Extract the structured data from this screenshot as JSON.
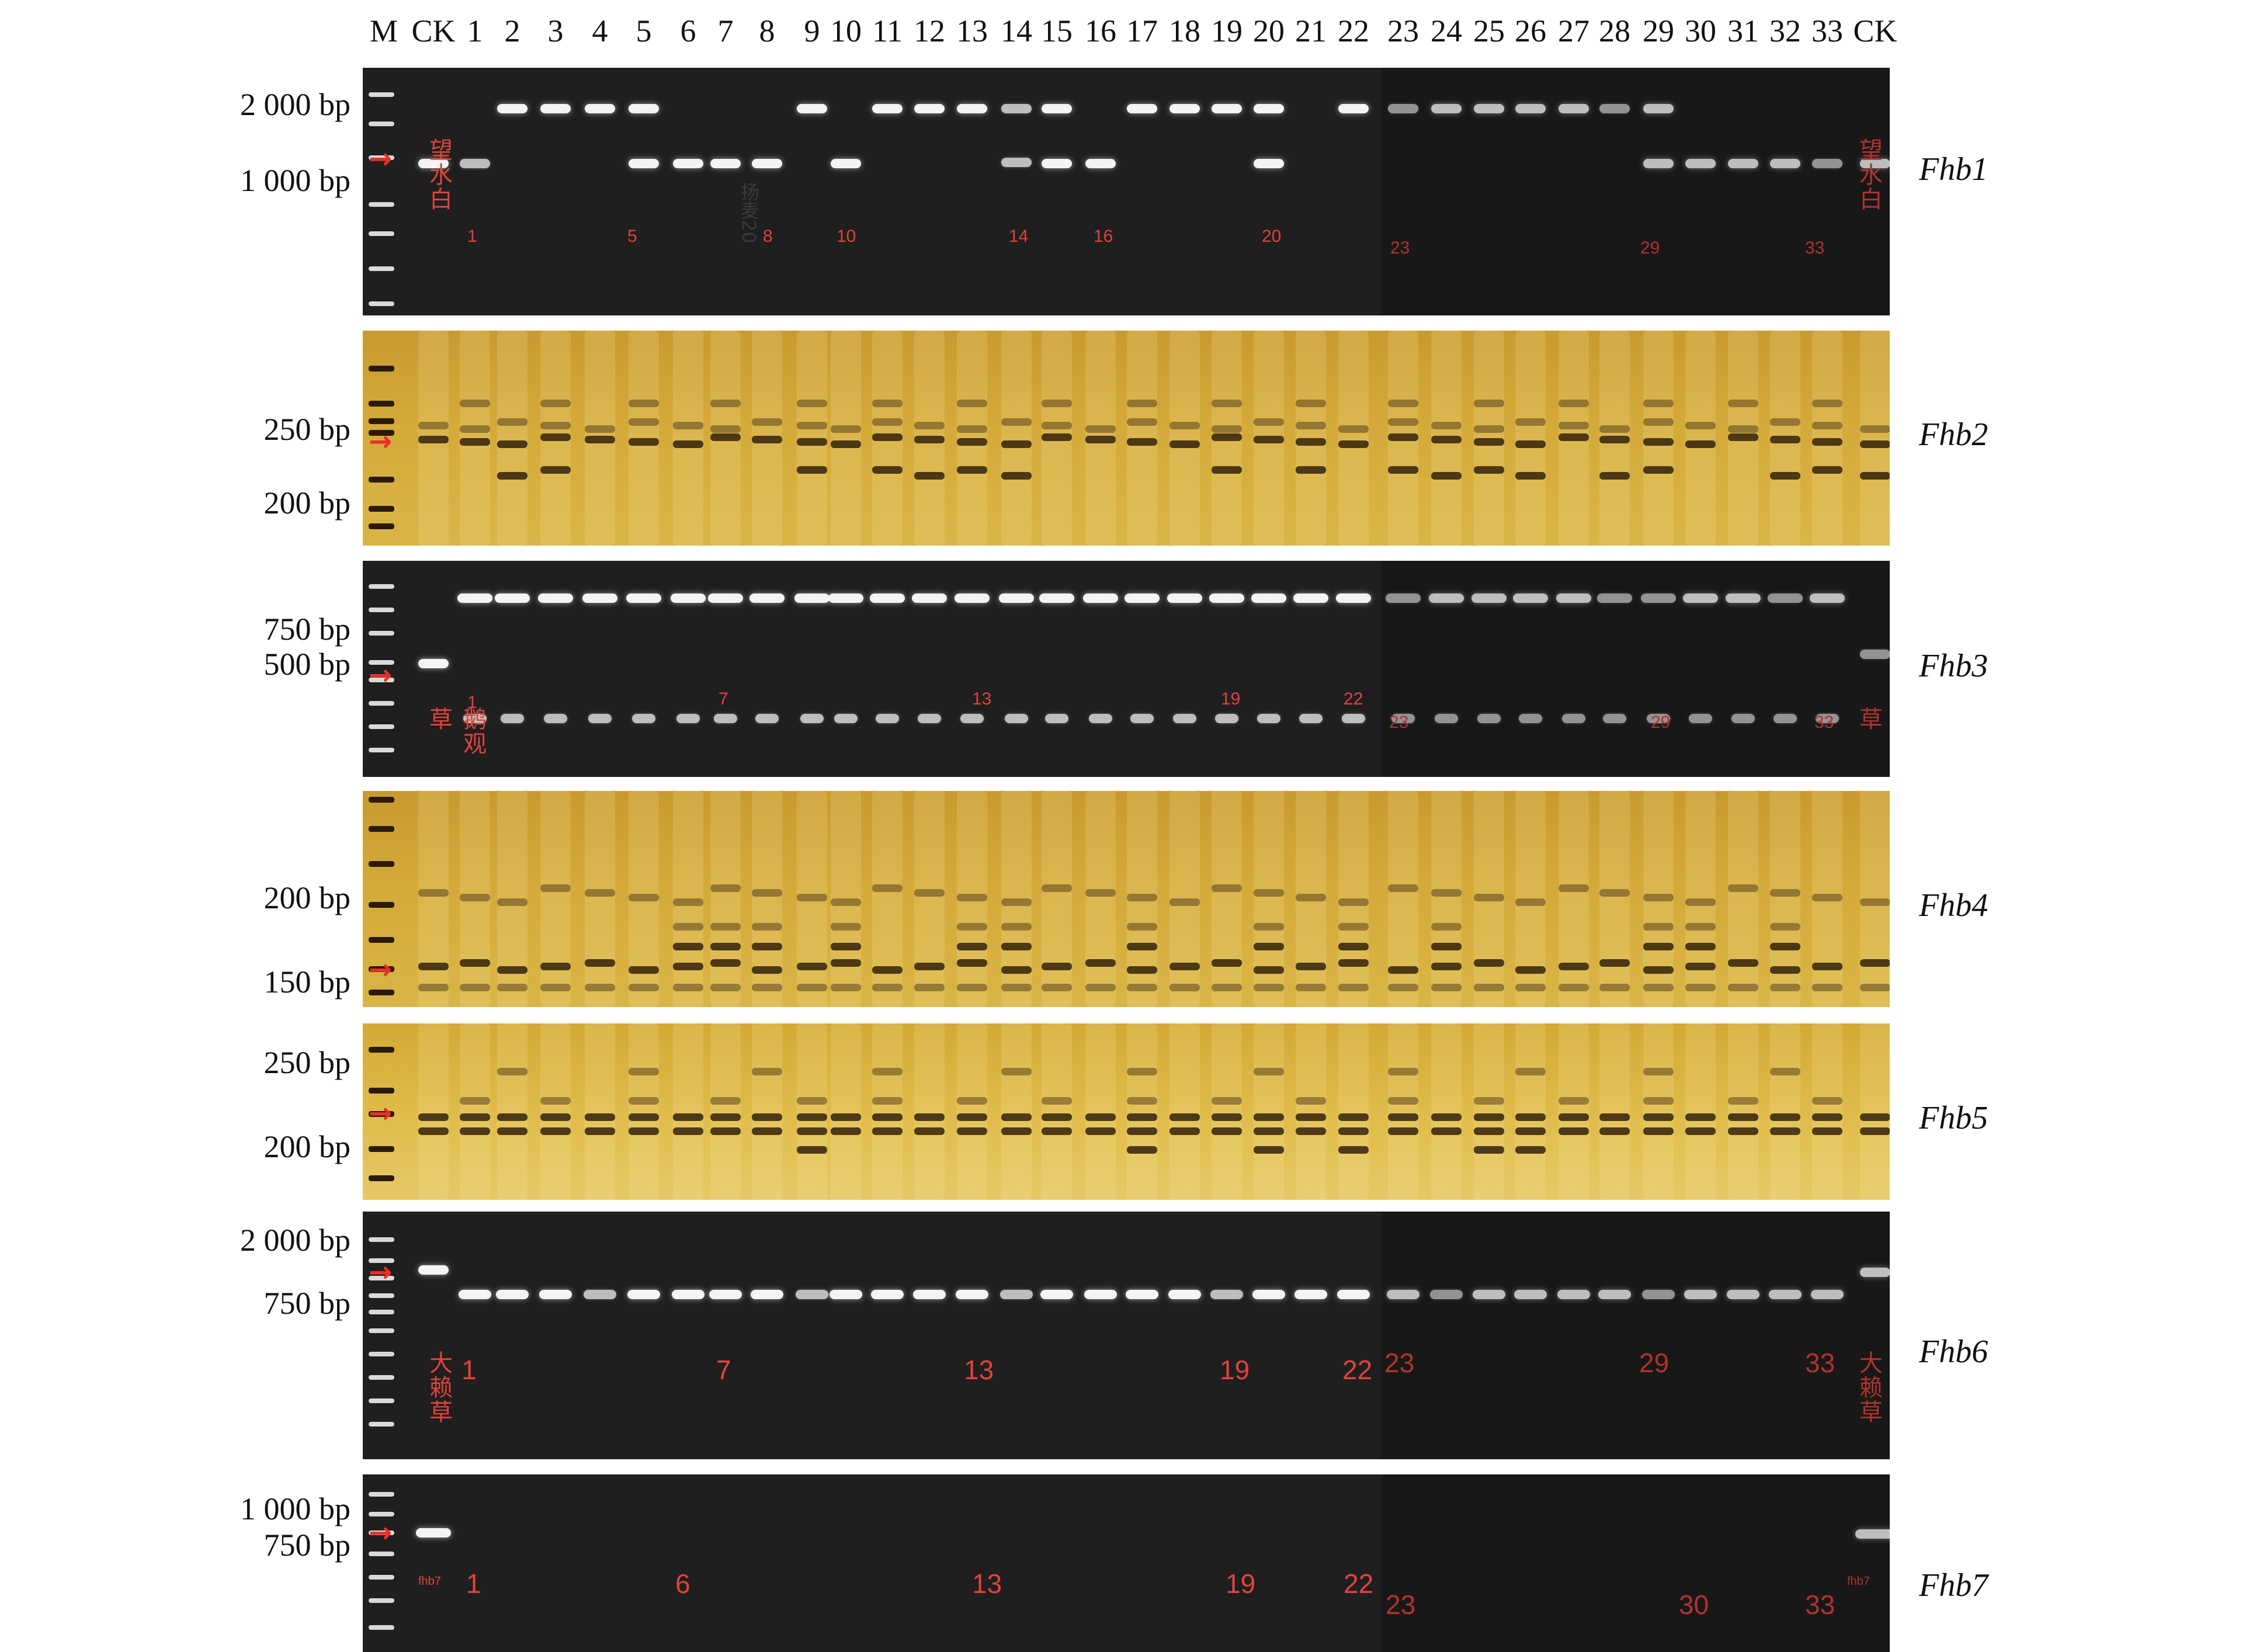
{
  "lane_headers": [
    "M",
    "CK",
    "1",
    "2",
    "3",
    "4",
    "5",
    "6",
    "7",
    "8",
    "9",
    "10",
    "11",
    "12",
    "13",
    "14",
    "15",
    "16",
    "17",
    "18",
    "19",
    "20",
    "21",
    "22",
    "23",
    "24",
    "25",
    "26",
    "27",
    "28",
    "29",
    "30",
    "31",
    "32",
    "33",
    "CK"
  ],
  "panels": [
    {
      "gene": "Fhb1",
      "style": "dark",
      "size_labels": [
        "2 000 bp",
        "1 000 bp"
      ],
      "lane_marks": [
        "望水白",
        "1",
        "5",
        "8",
        "10",
        "14",
        "16",
        "20",
        "23",
        "29",
        "33",
        "望水白"
      ],
      "stray_text": "扬麦20"
    },
    {
      "gene": "Fhb2",
      "style": "silver",
      "size_labels": [
        "250 bp",
        "200 bp"
      ],
      "lane_marks": []
    },
    {
      "gene": "Fhb3",
      "style": "dark",
      "size_labels": [
        "750 bp",
        "500 bp"
      ],
      "lane_marks": [
        "鹅观草",
        "1",
        "7",
        "13",
        "19",
        "22",
        "23",
        "29",
        "33",
        "鹅观草"
      ]
    },
    {
      "gene": "Fhb4",
      "style": "silver",
      "size_labels": [
        "200 bp",
        "150 bp"
      ],
      "lane_marks": []
    },
    {
      "gene": "Fhb5",
      "style": "silver",
      "size_labels": [
        "250 bp",
        "200 bp"
      ],
      "lane_marks": []
    },
    {
      "gene": "Fhb6",
      "style": "dark",
      "size_labels": [
        "2 000 bp",
        "750 bp"
      ],
      "lane_marks": [
        "大赖草",
        "1",
        "7",
        "13",
        "19",
        "22",
        "23",
        "29",
        "33",
        "大赖草"
      ]
    },
    {
      "gene": "Fhb7",
      "style": "dark",
      "size_labels": [
        "1 000 bp",
        "750 bp"
      ],
      "lane_marks": [
        "fhb7",
        "1",
        "6",
        "13",
        "19",
        "22",
        "23",
        "30",
        "33",
        "fhb7"
      ]
    }
  ],
  "colors": {
    "marker_arrow": "#e8302a",
    "lane_mark": "#e2423b",
    "agarose_background": "#1f1f20",
    "silver_stain_background": "#d4aa3a"
  }
}
